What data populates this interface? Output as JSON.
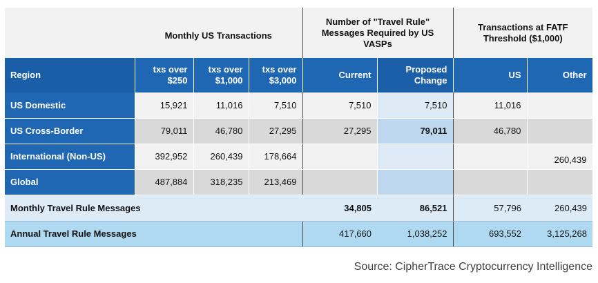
{
  "chart_data": {
    "type": "table",
    "group_headers": [
      "",
      "Monthly US Transactions",
      "Number of \"Travel Rule\" Messages Required by US VASPs",
      "Transactions at FATF Threshold ($1,000)"
    ],
    "columns": [
      "Region",
      "txs over $250",
      "txs over $1,000",
      "txs over $3,000",
      "Current",
      "Proposed Change",
      "US",
      "Other"
    ],
    "rows": [
      {
        "region": "US Domestic",
        "cells": [
          "15,921",
          "11,016",
          "7,510",
          "7,510",
          "7,510",
          "11,016",
          ""
        ]
      },
      {
        "region": "US Cross-Border",
        "cells": [
          "79,011",
          "46,780",
          "27,295",
          "27,295",
          "79,011",
          "46,780",
          ""
        ]
      },
      {
        "region": "International (Non-US)",
        "cells": [
          "392,952",
          "260,439",
          "178,664",
          "",
          "",
          "",
          "260,439"
        ]
      },
      {
        "region": "Global",
        "cells": [
          "487,884",
          "318,235",
          "213,469",
          "",
          "",
          "",
          ""
        ]
      }
    ],
    "summary_rows": [
      {
        "label": "Monthly Travel Rule Messages",
        "cells": [
          "",
          "",
          "",
          "34,805",
          "86,521",
          "57,796",
          "260,439"
        ]
      },
      {
        "label": "Annual Travel Rule Messages",
        "cells": [
          "",
          "",
          "",
          "417,660",
          "1,038,252",
          "693,552",
          "3,125,268"
        ]
      }
    ]
  },
  "source": "Source: CipherTrace Cryptocurrency Intelligence"
}
